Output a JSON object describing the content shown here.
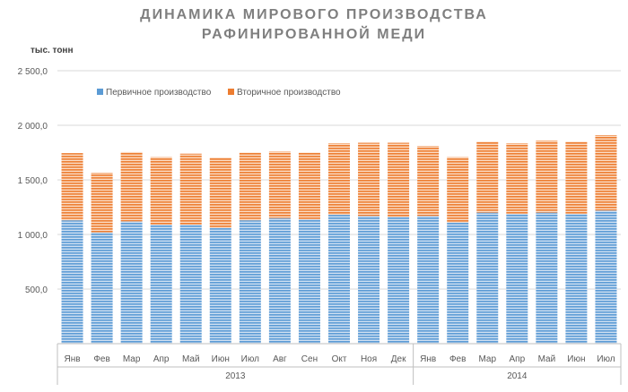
{
  "chart_data": {
    "type": "bar",
    "stacked": true,
    "title_lines": [
      "ДИНАМИКА МИРОВОГО ПРОИЗВОДСТВА",
      "РАФИНИРОВАННОЙ МЕДИ"
    ],
    "unit": "тыс. тонн",
    "ylim": [
      0,
      2500
    ],
    "yticks": [
      "2 500,0",
      "2 000,0",
      "1 500,0",
      "1 000,0",
      "500,0"
    ],
    "ytick_values": [
      2500,
      2000,
      1500,
      1000,
      500
    ],
    "categories": [
      "Янв",
      "Фев",
      "Мар",
      "Апр",
      "Май",
      "Июн",
      "Июл",
      "Авг",
      "Сен",
      "Окт",
      "Ноя",
      "Дек",
      "Янв",
      "Фев",
      "Мар",
      "Апр",
      "Май",
      "Июн",
      "Июл"
    ],
    "groups": [
      {
        "label": "2013",
        "count": 12
      },
      {
        "label": "2014",
        "count": 7
      }
    ],
    "series": [
      {
        "name": "Первичное производство",
        "color": "#5b9bd5",
        "values": [
          1130,
          1020,
          1120,
          1090,
          1090,
          1060,
          1130,
          1150,
          1140,
          1180,
          1170,
          1160,
          1170,
          1110,
          1200,
          1190,
          1200,
          1190,
          1220
        ]
      },
      {
        "name": "Вторичное производство",
        "color": "#ed7d31",
        "values": [
          615,
          545,
          635,
          620,
          650,
          645,
          620,
          610,
          610,
          655,
          670,
          680,
          640,
          600,
          650,
          645,
          660,
          660,
          690
        ]
      }
    ],
    "legend_position": "top"
  }
}
